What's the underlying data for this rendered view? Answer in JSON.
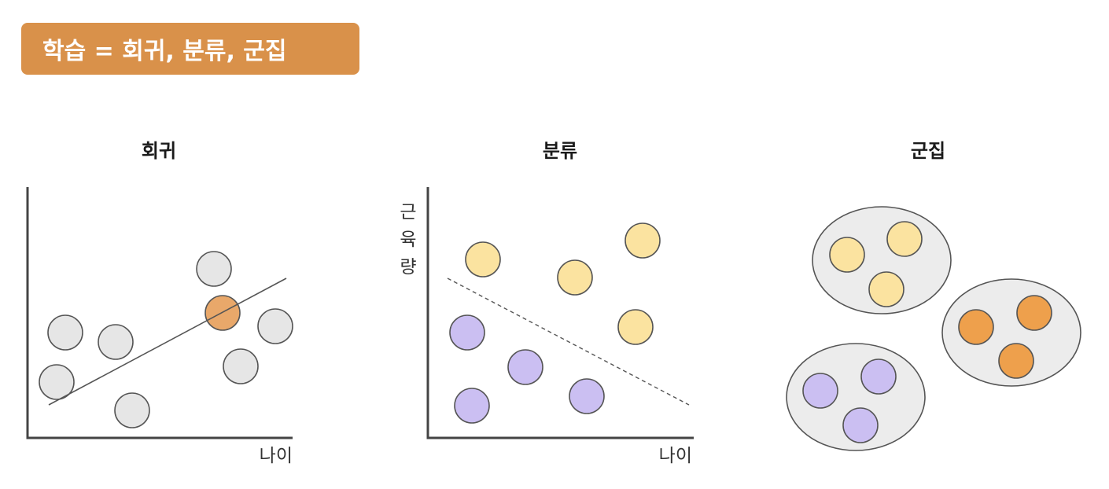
{
  "header": {
    "title": "학습 = 회귀, 분류, 군집"
  },
  "panels": {
    "regression": {
      "title": "회귀",
      "x_axis_label": "나이"
    },
    "classification": {
      "title": "분류",
      "x_axis_label": "나이",
      "y_axis_label_chars": [
        "근",
        "육",
        "량"
      ]
    },
    "clustering": {
      "title": "군집"
    }
  },
  "colors": {
    "badge": "#d9914a",
    "gray_point": "#e6e6e6",
    "highlight_point": "#e9a86a",
    "yellow_point": "#fbe3a0",
    "purple_point": "#cbbff2",
    "orange_point": "#eea04c",
    "cluster_fill": "#ececec"
  }
}
